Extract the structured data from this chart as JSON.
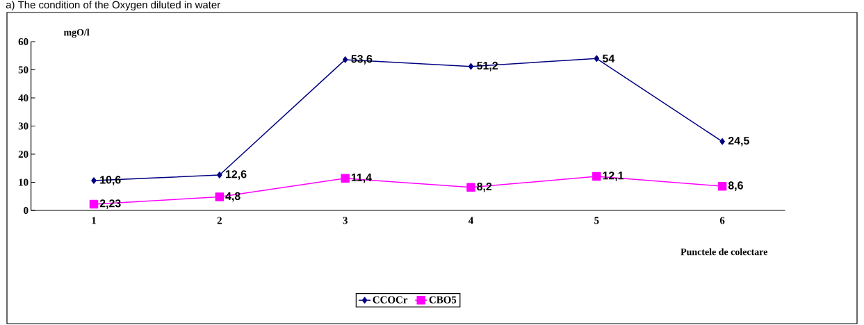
{
  "chart_data": {
    "type": "line",
    "title": "a) The condition of the Oxygen diluted in water",
    "xlabel": "Punctele de colectare",
    "ylabel": "mgO/l",
    "categories": [
      "1",
      "2",
      "3",
      "4",
      "5",
      "6"
    ],
    "series": [
      {
        "name": "CCOCr",
        "color": "#000080",
        "marker": "diamond",
        "values": [
          10.6,
          12.6,
          53.6,
          51.2,
          54,
          24.5
        ],
        "value_labels": [
          "10,6",
          "12,6",
          "53,6",
          "51,2",
          "54",
          "24,5"
        ]
      },
      {
        "name": "CBO5",
        "color": "#ff00ff",
        "marker": "square",
        "values": [
          2.23,
          4.8,
          11.4,
          8.2,
          12.1,
          8.6
        ],
        "value_labels": [
          "2,23",
          "4,8",
          "11,4",
          "8,2",
          "12,1",
          "8,6"
        ]
      }
    ],
    "ylim": [
      0,
      60
    ],
    "yticks": [
      0,
      10,
      20,
      30,
      40,
      50,
      60
    ],
    "grid": false,
    "legend": "bottom"
  }
}
